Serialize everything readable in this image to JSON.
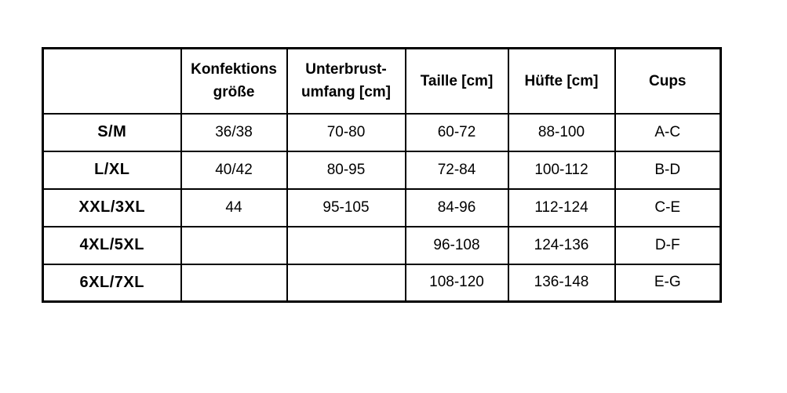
{
  "table": {
    "header": {
      "corner": "",
      "konfektion_line1": "Konfektions",
      "konfektion_line2": "größe",
      "unterbrust_line1": "Unterbrust-",
      "unterbrust_line2": "umfang [cm]",
      "taille": "Taille [cm]",
      "huefte": "Hüfte [cm]",
      "cups": "Cups"
    },
    "rows": [
      {
        "size": "S/M",
        "konfektion": "36/38",
        "unterbrust": "70-80",
        "taille": "60-72",
        "huefte": "88-100",
        "cups": "A-C"
      },
      {
        "size": "L/XL",
        "konfektion": "40/42",
        "unterbrust": "80-95",
        "taille": "72-84",
        "huefte": "100-112",
        "cups": "B-D"
      },
      {
        "size": "XXL/3XL",
        "konfektion": "44",
        "unterbrust": "95-105",
        "taille": "84-96",
        "huefte": "112-124",
        "cups": "C-E"
      },
      {
        "size": "4XL/5XL",
        "konfektion": "",
        "unterbrust": "",
        "taille": "96-108",
        "huefte": "124-136",
        "cups": "D-F"
      },
      {
        "size": "6XL/7XL",
        "konfektion": "",
        "unterbrust": "",
        "taille": "108-120",
        "huefte": "136-148",
        "cups": "E-G"
      }
    ],
    "colors": {
      "border": "#000000",
      "text": "#000000",
      "background": "#ffffff"
    }
  }
}
